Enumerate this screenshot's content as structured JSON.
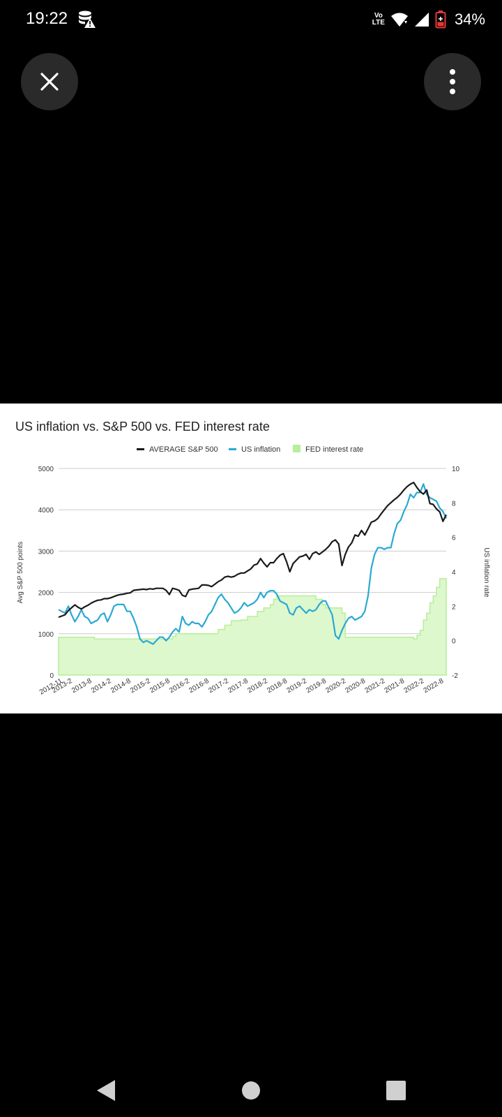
{
  "status_bar": {
    "time": "19:22",
    "network_badge": [
      "Vo",
      "LTE"
    ],
    "battery_percent": "34%",
    "battery_level": 34,
    "icons": [
      "database-warning-icon",
      "volte-icon",
      "wifi-icon",
      "signal-icon",
      "battery-icon"
    ]
  },
  "toolbar": {
    "close_icon": "close-icon",
    "menu_icon": "more-vert-icon"
  },
  "colors": {
    "sp500": "#1a1a1a",
    "inflation": "#29a9d3",
    "fed": "#b7ee9a",
    "fed_fill": "#ddf8cc",
    "grid": "#cccccc"
  },
  "chart_data": {
    "type": "line",
    "title": "US inflation vs. S&P 500 vs. FED interest rate",
    "ylabel": "Avg S&P 500 points",
    "y2label": "US inflation rate",
    "legend_position": "top-center",
    "grid": true,
    "ylim": [
      0,
      5000
    ],
    "y2lim": [
      -2,
      10
    ],
    "yticks": [
      "0",
      "1000",
      "2000",
      "3000",
      "4000",
      "5000"
    ],
    "y2ticks": [
      "-2",
      "0",
      "2",
      "4",
      "6",
      "8",
      "10"
    ],
    "xlim": [
      0,
      119
    ],
    "xticks": [
      {
        "label": "2012-11",
        "x": 0
      },
      {
        "label": "2013-2",
        "x": 3
      },
      {
        "label": "2013-8",
        "x": 9
      },
      {
        "label": "2014-2",
        "x": 15
      },
      {
        "label": "2014-8",
        "x": 21
      },
      {
        "label": "2015-2",
        "x": 27
      },
      {
        "label": "2015-8",
        "x": 33
      },
      {
        "label": "2016-2",
        "x": 39
      },
      {
        "label": "2016-8",
        "x": 45
      },
      {
        "label": "2017-2",
        "x": 51
      },
      {
        "label": "2017-8",
        "x": 57
      },
      {
        "label": "2018-2",
        "x": 63
      },
      {
        "label": "2018-8",
        "x": 69
      },
      {
        "label": "2019-2",
        "x": 75
      },
      {
        "label": "2019-8",
        "x": 81
      },
      {
        "label": "2020-2",
        "x": 87
      },
      {
        "label": "2020-8",
        "x": 93
      },
      {
        "label": "2021-2",
        "x": 99
      },
      {
        "label": "2021-8",
        "x": 105
      },
      {
        "label": "2022-2",
        "x": 111
      },
      {
        "label": "2022-8",
        "x": 117
      }
    ],
    "series": [
      {
        "name": "AVERAGE S&P 500",
        "axis": "left",
        "style": "line",
        "points": [
          [
            0,
            1400
          ],
          [
            2,
            1460
          ],
          [
            3,
            1560
          ],
          [
            4,
            1630
          ],
          [
            5,
            1700
          ],
          [
            6,
            1640
          ],
          [
            7,
            1600
          ],
          [
            8,
            1650
          ],
          [
            9,
            1690
          ],
          [
            10,
            1740
          ],
          [
            11,
            1780
          ],
          [
            12,
            1810
          ],
          [
            13,
            1820
          ],
          [
            14,
            1850
          ],
          [
            15,
            1850
          ],
          [
            16,
            1870
          ],
          [
            17,
            1900
          ],
          [
            18,
            1930
          ],
          [
            19,
            1950
          ],
          [
            20,
            1960
          ],
          [
            21,
            1980
          ],
          [
            22,
            1990
          ],
          [
            23,
            2050
          ],
          [
            24,
            2060
          ],
          [
            25,
            2070
          ],
          [
            26,
            2080
          ],
          [
            27,
            2070
          ],
          [
            28,
            2090
          ],
          [
            29,
            2080
          ],
          [
            30,
            2100
          ],
          [
            31,
            2100
          ],
          [
            32,
            2100
          ],
          [
            33,
            2050
          ],
          [
            34,
            1950
          ],
          [
            35,
            2100
          ],
          [
            36,
            2080
          ],
          [
            37,
            2050
          ],
          [
            38,
            1930
          ],
          [
            39,
            1900
          ],
          [
            40,
            2060
          ],
          [
            41,
            2080
          ],
          [
            42,
            2090
          ],
          [
            43,
            2100
          ],
          [
            44,
            2180
          ],
          [
            45,
            2180
          ],
          [
            46,
            2170
          ],
          [
            47,
            2140
          ],
          [
            48,
            2200
          ],
          [
            49,
            2260
          ],
          [
            50,
            2300
          ],
          [
            51,
            2370
          ],
          [
            52,
            2390
          ],
          [
            53,
            2370
          ],
          [
            54,
            2390
          ],
          [
            55,
            2440
          ],
          [
            56,
            2470
          ],
          [
            57,
            2470
          ],
          [
            58,
            2520
          ],
          [
            59,
            2570
          ],
          [
            60,
            2660
          ],
          [
            61,
            2690
          ],
          [
            62,
            2820
          ],
          [
            63,
            2710
          ],
          [
            64,
            2620
          ],
          [
            65,
            2720
          ],
          [
            66,
            2720
          ],
          [
            67,
            2820
          ],
          [
            68,
            2900
          ],
          [
            69,
            2940
          ],
          [
            70,
            2740
          ],
          [
            71,
            2500
          ],
          [
            72,
            2700
          ],
          [
            73,
            2780
          ],
          [
            74,
            2860
          ],
          [
            75,
            2880
          ],
          [
            76,
            2920
          ],
          [
            77,
            2800
          ],
          [
            78,
            2940
          ],
          [
            79,
            2980
          ],
          [
            80,
            2920
          ],
          [
            81,
            2980
          ],
          [
            82,
            3040
          ],
          [
            83,
            3120
          ],
          [
            84,
            3230
          ],
          [
            85,
            3270
          ],
          [
            86,
            3170
          ],
          [
            87,
            2650
          ],
          [
            88,
            2920
          ],
          [
            89,
            3100
          ],
          [
            90,
            3200
          ],
          [
            91,
            3390
          ],
          [
            92,
            3360
          ],
          [
            93,
            3500
          ],
          [
            94,
            3390
          ],
          [
            95,
            3540
          ],
          [
            96,
            3700
          ],
          [
            97,
            3730
          ],
          [
            98,
            3790
          ],
          [
            99,
            3900
          ],
          [
            100,
            4000
          ],
          [
            101,
            4100
          ],
          [
            102,
            4170
          ],
          [
            103,
            4240
          ],
          [
            104,
            4300
          ],
          [
            105,
            4380
          ],
          [
            106,
            4480
          ],
          [
            107,
            4560
          ],
          [
            108,
            4620
          ],
          [
            109,
            4660
          ],
          [
            110,
            4540
          ],
          [
            111,
            4440
          ],
          [
            112,
            4380
          ],
          [
            113,
            4480
          ],
          [
            114,
            4150
          ],
          [
            115,
            4130
          ],
          [
            116,
            4020
          ],
          [
            117,
            3950
          ],
          [
            118,
            3720
          ],
          [
            119,
            3880
          ]
        ]
      },
      {
        "name": "US inflation",
        "axis": "right",
        "style": "line",
        "points": [
          [
            0,
            1.8
          ],
          [
            2,
            1.6
          ],
          [
            3,
            2.0
          ],
          [
            4,
            1.5
          ],
          [
            5,
            1.1
          ],
          [
            6,
            1.4
          ],
          [
            7,
            1.8
          ],
          [
            8,
            1.4
          ],
          [
            9,
            1.3
          ],
          [
            10,
            1.0
          ],
          [
            11,
            1.1
          ],
          [
            12,
            1.2
          ],
          [
            13,
            1.5
          ],
          [
            14,
            1.6
          ],
          [
            15,
            1.1
          ],
          [
            16,
            1.5
          ],
          [
            17,
            2.0
          ],
          [
            18,
            2.1
          ],
          [
            19,
            2.1
          ],
          [
            20,
            2.1
          ],
          [
            21,
            1.7
          ],
          [
            22,
            1.7
          ],
          [
            23,
            1.3
          ],
          [
            24,
            0.8
          ],
          [
            25,
            0.1
          ],
          [
            26,
            -0.1
          ],
          [
            27,
            0.0
          ],
          [
            28,
            -0.1
          ],
          [
            29,
            -0.2
          ],
          [
            30,
            0.0
          ],
          [
            31,
            0.2
          ],
          [
            32,
            0.2
          ],
          [
            33,
            0.0
          ],
          [
            34,
            0.2
          ],
          [
            35,
            0.5
          ],
          [
            36,
            0.7
          ],
          [
            37,
            0.5
          ],
          [
            38,
            1.4
          ],
          [
            39,
            1.0
          ],
          [
            40,
            0.9
          ],
          [
            41,
            1.1
          ],
          [
            42,
            1.0
          ],
          [
            43,
            1.0
          ],
          [
            44,
            0.8
          ],
          [
            45,
            1.1
          ],
          [
            46,
            1.5
          ],
          [
            47,
            1.7
          ],
          [
            48,
            2.1
          ],
          [
            49,
            2.5
          ],
          [
            50,
            2.7
          ],
          [
            51,
            2.4
          ],
          [
            52,
            2.2
          ],
          [
            53,
            1.9
          ],
          [
            54,
            1.6
          ],
          [
            55,
            1.7
          ],
          [
            56,
            1.9
          ],
          [
            57,
            2.2
          ],
          [
            58,
            2.0
          ],
          [
            59,
            2.1
          ],
          [
            60,
            2.2
          ],
          [
            61,
            2.4
          ],
          [
            62,
            2.8
          ],
          [
            63,
            2.5
          ],
          [
            64,
            2.8
          ],
          [
            65,
            2.9
          ],
          [
            66,
            2.9
          ],
          [
            67,
            2.7
          ],
          [
            68,
            2.3
          ],
          [
            69,
            2.2
          ],
          [
            70,
            2.1
          ],
          [
            71,
            1.6
          ],
          [
            72,
            1.5
          ],
          [
            73,
            1.9
          ],
          [
            74,
            2.0
          ],
          [
            75,
            1.8
          ],
          [
            76,
            1.6
          ],
          [
            77,
            1.8
          ],
          [
            78,
            1.7
          ],
          [
            79,
            1.8
          ],
          [
            80,
            2.1
          ],
          [
            81,
            2.3
          ],
          [
            82,
            2.3
          ],
          [
            83,
            1.9
          ],
          [
            84,
            1.5
          ],
          [
            85,
            0.3
          ],
          [
            86,
            0.1
          ],
          [
            87,
            0.6
          ],
          [
            88,
            1.0
          ],
          [
            89,
            1.3
          ],
          [
            90,
            1.4
          ],
          [
            91,
            1.2
          ],
          [
            92,
            1.3
          ],
          [
            93,
            1.4
          ],
          [
            94,
            1.7
          ],
          [
            95,
            2.6
          ],
          [
            96,
            4.2
          ],
          [
            97,
            5.0
          ],
          [
            98,
            5.4
          ],
          [
            99,
            5.4
          ],
          [
            100,
            5.3
          ],
          [
            101,
            5.4
          ],
          [
            102,
            5.4
          ],
          [
            103,
            6.2
          ],
          [
            104,
            6.8
          ],
          [
            105,
            7.0
          ],
          [
            106,
            7.5
          ],
          [
            107,
            7.9
          ],
          [
            108,
            8.5
          ],
          [
            109,
            8.3
          ],
          [
            110,
            8.6
          ],
          [
            111,
            8.6
          ],
          [
            112,
            9.1
          ],
          [
            113,
            8.5
          ],
          [
            114,
            8.3
          ],
          [
            115,
            8.2
          ],
          [
            116,
            8.1
          ],
          [
            117,
            7.7
          ],
          [
            118,
            7.5
          ],
          [
            119,
            7.1
          ]
        ]
      },
      {
        "name": "FED interest rate",
        "axis": "right",
        "style": "step-area",
        "points": [
          [
            0,
            0.2
          ],
          [
            11,
            0.1
          ],
          [
            33,
            0.1
          ],
          [
            35,
            0.25
          ],
          [
            36,
            0.4
          ],
          [
            48,
            0.4
          ],
          [
            49,
            0.65
          ],
          [
            51,
            0.9
          ],
          [
            53,
            1.15
          ],
          [
            56,
            1.2
          ],
          [
            58,
            1.4
          ],
          [
            61,
            1.7
          ],
          [
            63,
            1.9
          ],
          [
            65,
            2.1
          ],
          [
            66,
            2.4
          ],
          [
            67,
            2.6
          ],
          [
            79,
            2.4
          ],
          [
            81,
            2.1
          ],
          [
            82,
            1.9
          ],
          [
            87,
            1.6
          ],
          [
            88,
            0.2
          ],
          [
            109,
            0.1
          ],
          [
            110,
            0.3
          ],
          [
            111,
            0.6
          ],
          [
            112,
            1.2
          ],
          [
            113,
            1.6
          ],
          [
            114,
            2.2
          ],
          [
            115,
            2.6
          ],
          [
            116,
            3.1
          ],
          [
            117,
            3.6
          ],
          [
            119,
            3.6
          ]
        ]
      }
    ]
  }
}
